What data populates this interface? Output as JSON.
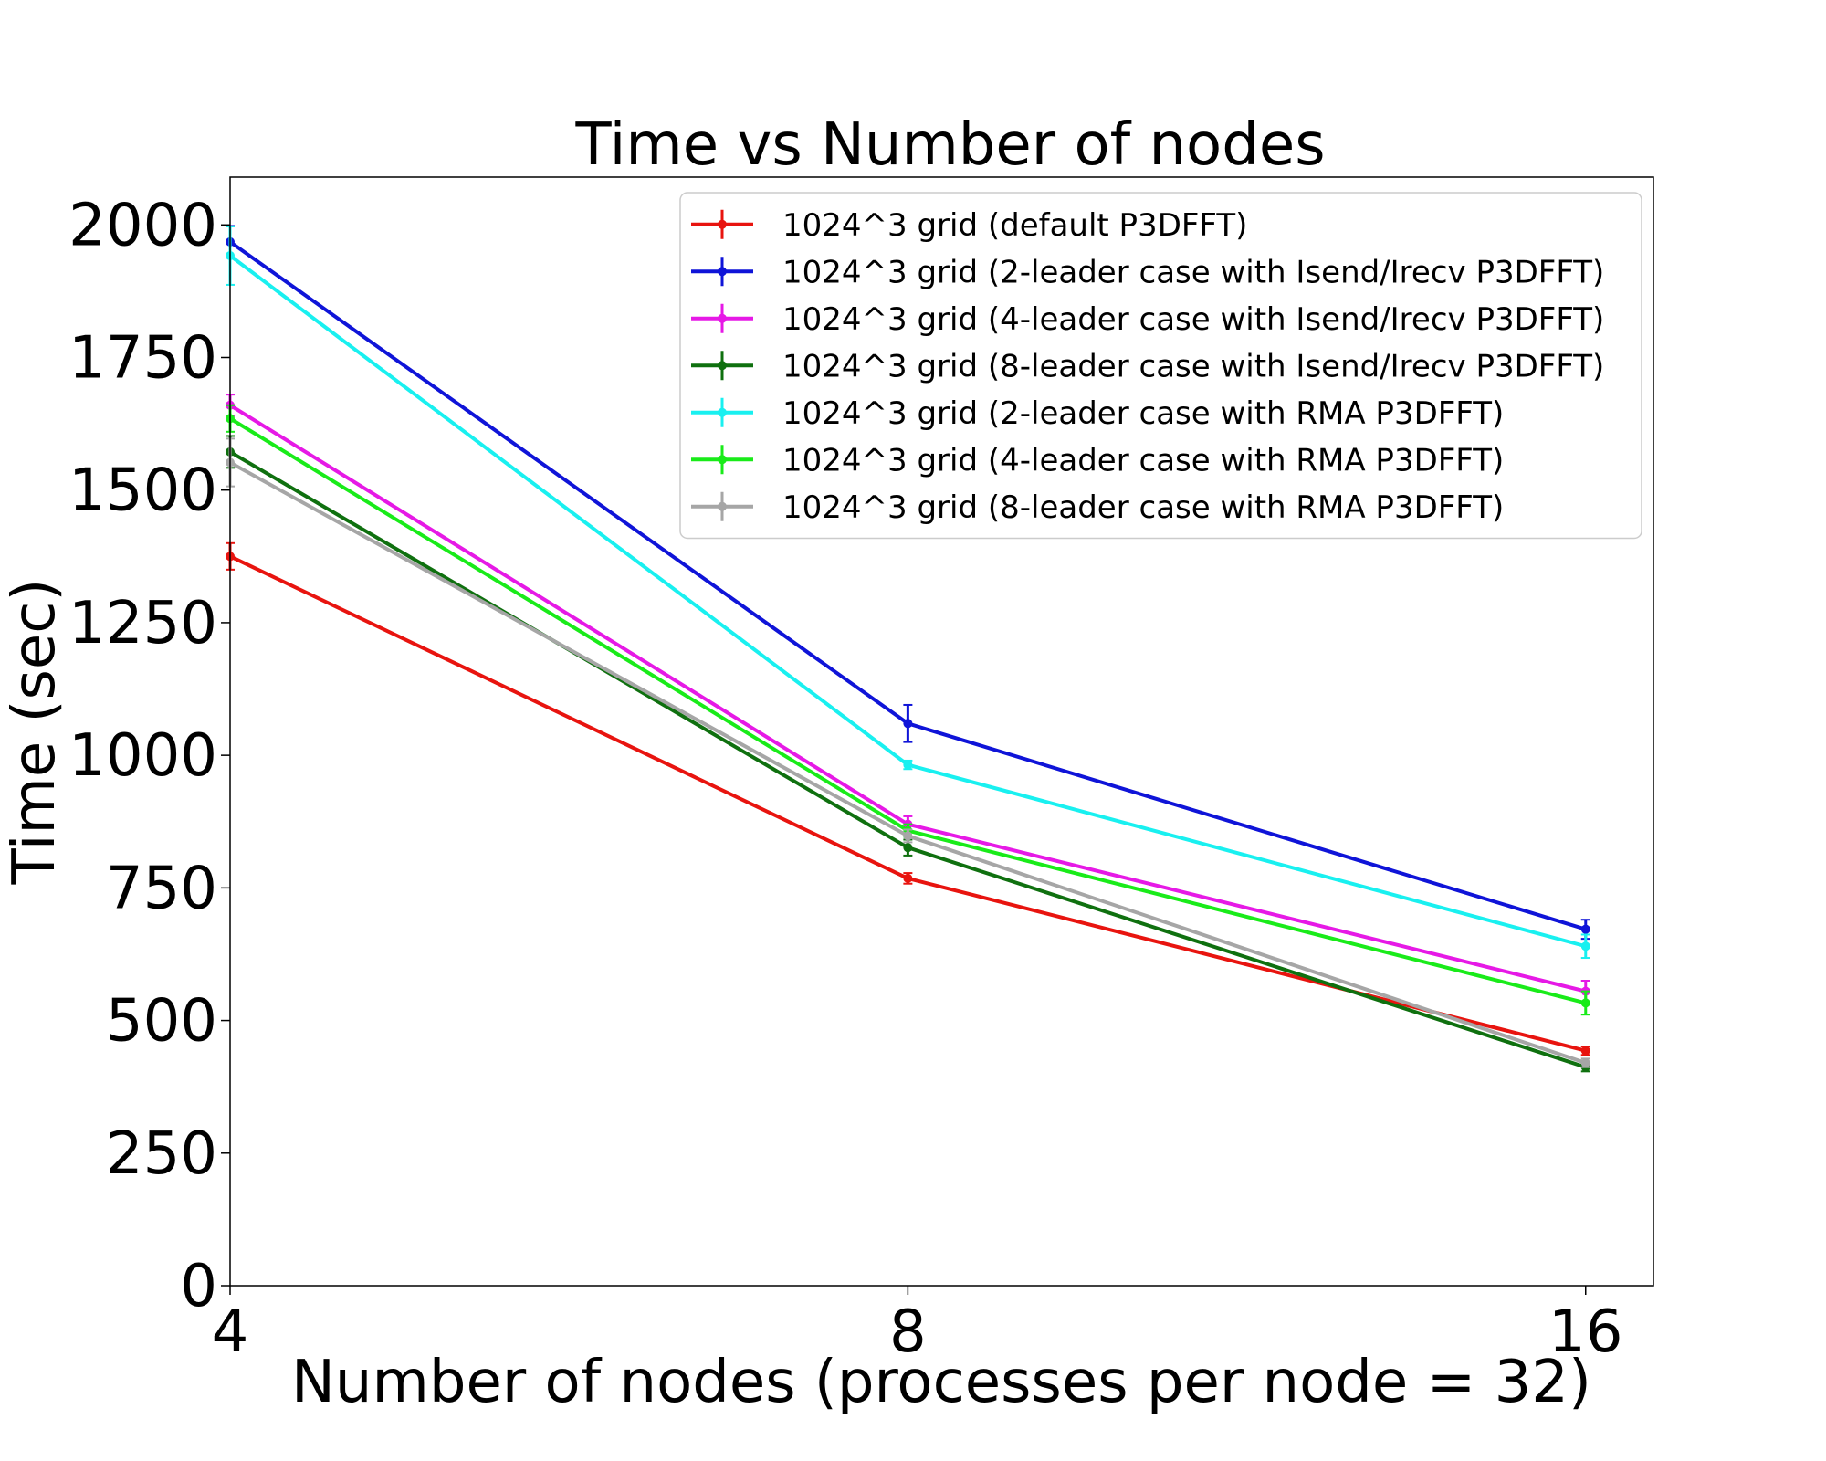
{
  "chart_data": {
    "type": "line",
    "title": "Time vs Number of nodes",
    "xlabel": "Number of nodes (processes per node = 32)",
    "ylabel": "Time (sec)",
    "categories": [
      "4",
      "8",
      "16"
    ],
    "xlim": [
      0,
      2.1
    ],
    "ylim": [
      0,
      2090
    ],
    "yticks": [
      0,
      250,
      500,
      750,
      1000,
      1250,
      1500,
      1750,
      2000
    ],
    "grid": false,
    "legend_position": "top-right",
    "series": [
      {
        "name": "1024^3 grid (default P3DFFT)",
        "color": "#e8140f",
        "values": [
          1375,
          768,
          443
        ],
        "errors": [
          25,
          10,
          8
        ]
      },
      {
        "name": "1024^3 grid (2-leader case with Isend/Irecv P3DFFT)",
        "color": "#0f14d8",
        "values": [
          1968,
          1060,
          672
        ],
        "errors": [
          30,
          35,
          18
        ]
      },
      {
        "name": "1024^3 grid (4-leader case with Isend/Irecv P3DFFT)",
        "color": "#e619e6",
        "values": [
          1660,
          870,
          555
        ],
        "errors": [
          20,
          15,
          20
        ]
      },
      {
        "name": "1024^3 grid (8-leader case with Isend/Irecv P3DFFT)",
        "color": "#0f700f",
        "values": [
          1572,
          826,
          412
        ],
        "errors": [
          30,
          15,
          8
        ]
      },
      {
        "name": "1024^3 grid (2-leader case with RMA P3DFFT)",
        "color": "#19f0f0",
        "values": [
          1942,
          982,
          640
        ],
        "errors": [
          55,
          8,
          22
        ]
      },
      {
        "name": "1024^3 grid (4-leader case with RMA P3DFFT)",
        "color": "#19eb19",
        "values": [
          1635,
          858,
          533
        ],
        "errors": [
          25,
          12,
          22
        ]
      },
      {
        "name": "1024^3 grid (8-leader case with RMA P3DFFT)",
        "color": "#a6a6a6",
        "values": [
          1552,
          848,
          420
        ],
        "errors": [
          45,
          12,
          8
        ]
      }
    ]
  }
}
